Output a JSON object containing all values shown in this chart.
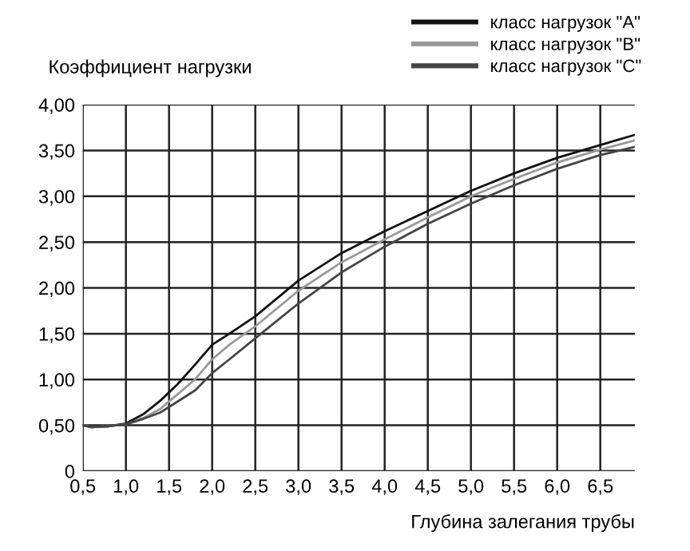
{
  "chart_data": {
    "type": "line",
    "ylabel": "Коэффициент нагрузки",
    "xlabel": "Глубина залегания трубы",
    "x": [
      0.5,
      0.6,
      0.8,
      1.0,
      1.2,
      1.4,
      1.6,
      1.8,
      2.0,
      2.2,
      2.5,
      3.0,
      3.5,
      4.0,
      4.5,
      5.0,
      5.5,
      6.0,
      6.5,
      6.9
    ],
    "series": [
      {
        "name": "класс нагрузок \"A\"",
        "color": "#111111",
        "values": [
          0.5,
          0.48,
          0.49,
          0.52,
          0.62,
          0.77,
          0.95,
          1.16,
          1.38,
          1.5,
          1.69,
          2.08,
          2.38,
          2.62,
          2.84,
          3.06,
          3.25,
          3.42,
          3.56,
          3.67
        ]
      },
      {
        "name": "класс нагрузок \"B\"",
        "color": "#999999",
        "values": [
          0.5,
          0.48,
          0.49,
          0.51,
          0.58,
          0.68,
          0.84,
          1.0,
          1.22,
          1.38,
          1.58,
          1.97,
          2.28,
          2.53,
          2.77,
          3.0,
          3.19,
          3.37,
          3.51,
          3.61
        ]
      },
      {
        "name": "класс нагрузок \"C\"",
        "color": "#444444",
        "values": [
          0.5,
          0.48,
          0.49,
          0.51,
          0.57,
          0.64,
          0.76,
          0.88,
          1.07,
          1.22,
          1.45,
          1.83,
          2.17,
          2.45,
          2.7,
          2.92,
          3.12,
          3.3,
          3.45,
          3.54
        ]
      }
    ],
    "xlim": [
      0.5,
      6.9
    ],
    "ylim": [
      0,
      4
    ],
    "xticks": [
      {
        "value": 0.5,
        "label": "0,5"
      },
      {
        "value": 1.0,
        "label": "1,0"
      },
      {
        "value": 1.5,
        "label": "1,5"
      },
      {
        "value": 2.0,
        "label": "2,0"
      },
      {
        "value": 2.5,
        "label": "2,5"
      },
      {
        "value": 3.0,
        "label": "3,0"
      },
      {
        "value": 3.5,
        "label": "3,5"
      },
      {
        "value": 4.0,
        "label": "4,0"
      },
      {
        "value": 4.5,
        "label": "4,5"
      },
      {
        "value": 5.0,
        "label": "5,0"
      },
      {
        "value": 5.5,
        "label": "5,5"
      },
      {
        "value": 6.0,
        "label": "6,0"
      },
      {
        "value": 6.5,
        "label": "6,5"
      }
    ],
    "yticks": [
      0,
      {
        "value": 0.5,
        "label": "0,50"
      },
      {
        "value": 1.0,
        "label": "1,00"
      },
      {
        "value": 1.5,
        "label": "1,50"
      },
      {
        "value": 2.0,
        "label": "2,00"
      },
      {
        "value": 2.5,
        "label": "2,50"
      },
      {
        "value": 3.0,
        "label": "3,00"
      },
      {
        "value": 3.5,
        "label": "3,50"
      },
      {
        "value": 4.0,
        "label": "4,00"
      }
    ],
    "grid": true,
    "legend": "top right",
    "marker": "none",
    "line_style": "solid"
  }
}
